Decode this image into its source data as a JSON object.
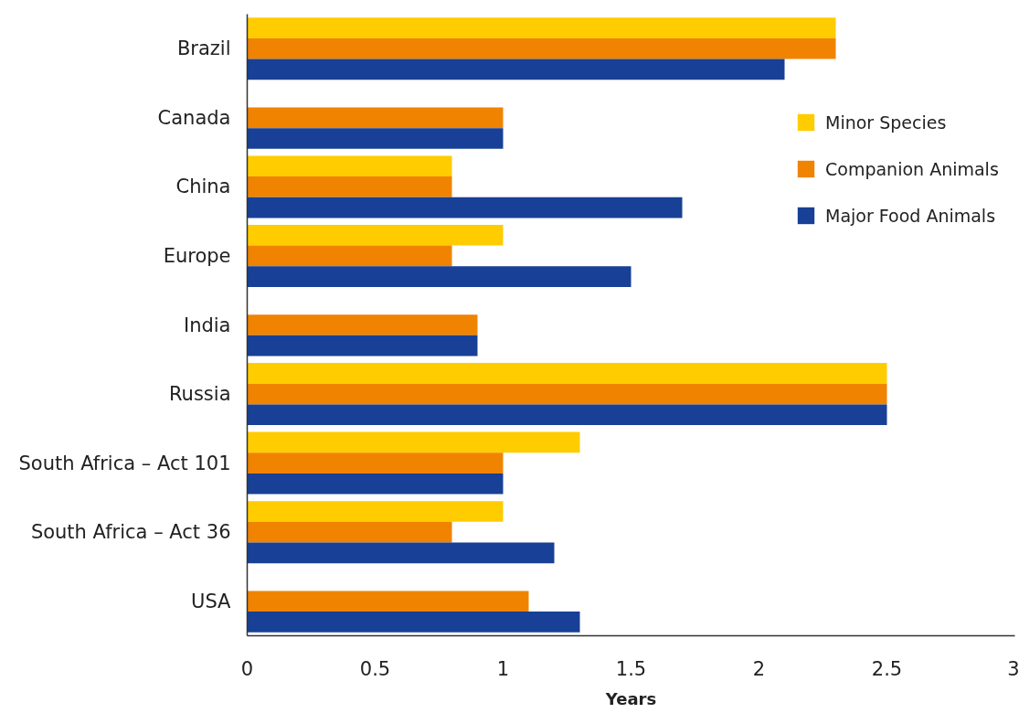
{
  "chart_data": {
    "type": "bar",
    "orientation": "horizontal",
    "xlabel": "Years",
    "categories": [
      "Brazil",
      "Canada",
      "China",
      "Europe",
      "India",
      "Russia",
      "South Africa – Act 101",
      "South Africa – Act 36",
      "USA"
    ],
    "series": [
      {
        "name": "Minor Species",
        "color": "#ffcc00",
        "values": [
          2.3,
          null,
          0.8,
          1.0,
          null,
          2.5,
          1.3,
          1.0,
          null
        ]
      },
      {
        "name": "Companion Animals",
        "color": "#f08300",
        "values": [
          2.3,
          1.0,
          0.8,
          0.8,
          0.9,
          2.5,
          1.0,
          0.8,
          1.1
        ]
      },
      {
        "name": "Major Food Animals",
        "color": "#174096",
        "values": [
          2.1,
          1.0,
          1.7,
          1.5,
          0.9,
          2.5,
          1.0,
          1.2,
          1.3
        ]
      }
    ],
    "xlim": [
      0,
      3
    ],
    "xticks": [
      0,
      0.5,
      1,
      1.5,
      2,
      2.5,
      3
    ],
    "legend": "top right"
  }
}
